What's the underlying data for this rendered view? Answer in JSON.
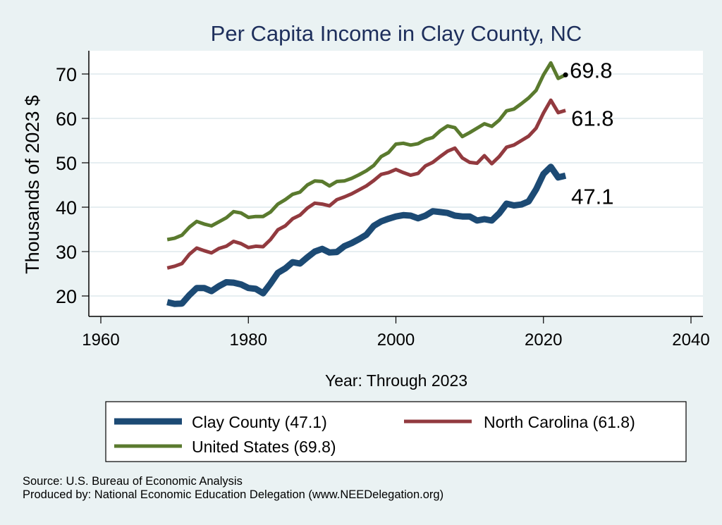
{
  "chart_data": {
    "type": "line",
    "title": "Per Capita Income in Clay County, NC",
    "xlabel": "Year: Through 2023",
    "ylabel": "Thousands of 2023 $",
    "xlim": [
      1960,
      2040
    ],
    "ylim": [
      15,
      75
    ],
    "xticks": [
      1960,
      1980,
      2000,
      2020,
      2040
    ],
    "yticks": [
      20,
      30,
      40,
      50,
      60,
      70
    ],
    "grid": true,
    "legend_position": "bottom",
    "x_start": 1969,
    "series": [
      {
        "name": "Clay County",
        "legend": "Clay County (47.1)",
        "color": "#1c4a74",
        "width": 9,
        "end_label": "47.1",
        "values": [
          18.6,
          18.2,
          18.3,
          20.2,
          21.8,
          21.8,
          21.1,
          22.2,
          23.1,
          23.0,
          22.6,
          21.8,
          21.6,
          20.6,
          22.8,
          25.2,
          26.2,
          27.6,
          27.3,
          28.7,
          30.0,
          30.6,
          29.8,
          29.9,
          31.2,
          31.9,
          32.8,
          33.8,
          35.8,
          36.8,
          37.4,
          37.9,
          38.2,
          38.1,
          37.5,
          38.1,
          39.1,
          38.9,
          38.7,
          38.1,
          37.9,
          37.9,
          37.0,
          37.3,
          37.0,
          38.6,
          40.8,
          40.4,
          40.6,
          41.3,
          44.0,
          47.5,
          49.1,
          46.7,
          47.1
        ]
      },
      {
        "name": "North Carolina",
        "legend": "North Carolina (61.8)",
        "color": "#923a3f",
        "width": 5,
        "end_label": "61.8",
        "values": [
          26.3,
          26.7,
          27.3,
          29.4,
          30.8,
          30.2,
          29.7,
          30.7,
          31.2,
          32.3,
          31.8,
          30.9,
          31.2,
          31.1,
          32.7,
          34.9,
          35.8,
          37.4,
          38.2,
          39.8,
          40.9,
          40.7,
          40.3,
          41.7,
          42.3,
          43.0,
          43.9,
          44.8,
          46.0,
          47.4,
          47.8,
          48.5,
          47.8,
          47.2,
          47.6,
          49.3,
          50.1,
          51.4,
          52.6,
          53.3,
          51.1,
          50.1,
          49.9,
          51.6,
          49.8,
          51.4,
          53.5,
          54.0,
          55.0,
          56.0,
          57.8,
          61.2,
          64.1,
          61.3,
          61.8
        ]
      },
      {
        "name": "United States",
        "legend": "United States (69.8)",
        "color": "#5a7a2e",
        "width": 5,
        "end_label": "69.8",
        "values": [
          32.7,
          33.0,
          33.7,
          35.5,
          36.8,
          36.2,
          35.8,
          36.7,
          37.6,
          39.0,
          38.7,
          37.7,
          37.9,
          37.9,
          38.9,
          40.7,
          41.7,
          42.9,
          43.4,
          45.0,
          45.9,
          45.8,
          44.8,
          45.8,
          45.9,
          46.5,
          47.3,
          48.2,
          49.4,
          51.4,
          52.3,
          54.2,
          54.4,
          54.0,
          54.3,
          55.2,
          55.7,
          57.2,
          58.3,
          57.9,
          55.9,
          56.8,
          57.8,
          58.8,
          58.2,
          59.6,
          61.7,
          62.1,
          63.3,
          64.6,
          66.3,
          69.8,
          72.5,
          69.0,
          69.8
        ]
      }
    ]
  },
  "footer": {
    "source": "Source: U.S. Bureau of Economic Analysis",
    "produced": "Produced by: National Economic Education Delegation (www.NEEDelegation.org)"
  }
}
